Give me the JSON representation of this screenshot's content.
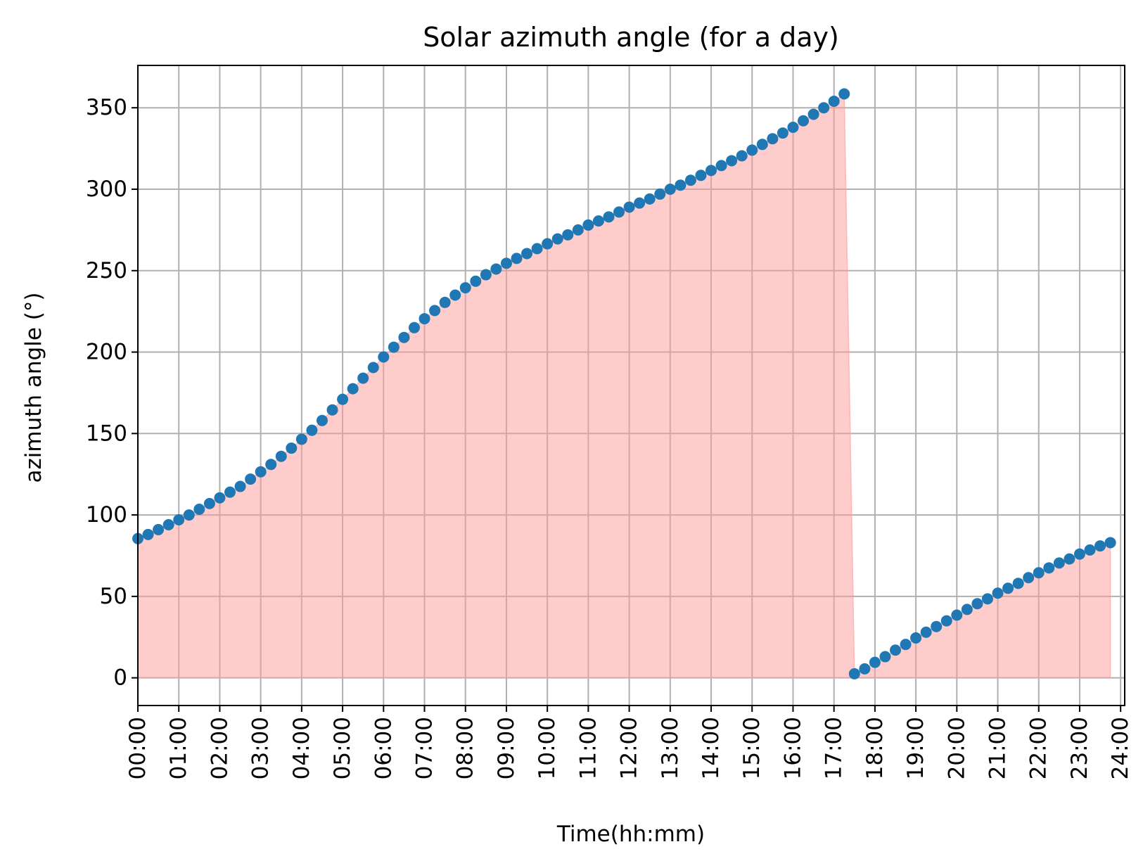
{
  "chart_data": {
    "type": "scatter",
    "title": "Solar azimuth angle (for a day)",
    "xlabel": "Time(hh:mm)",
    "ylabel": "azimuth angle (°)",
    "x_tick_labels": [
      "00:00",
      "01:00",
      "02:00",
      "03:00",
      "04:00",
      "05:00",
      "06:00",
      "07:00",
      "08:00",
      "09:00",
      "10:00",
      "11:00",
      "12:00",
      "13:00",
      "14:00",
      "15:00",
      "16:00",
      "17:00",
      "18:00",
      "19:00",
      "20:00",
      "21:00",
      "22:00",
      "23:00",
      "24:00"
    ],
    "y_ticks": [
      0,
      50,
      100,
      150,
      200,
      250,
      300,
      350
    ],
    "x_range_hours": [
      0,
      24.1
    ],
    "ylim": [
      -17,
      376
    ],
    "grid": true,
    "point_color": "#1f77b4",
    "fill_color": "#ff9999",
    "fill_opacity": 0.5,
    "fill_baseline": 0,
    "series": [
      {
        "x_hours": [
          0,
          0.25,
          0.5,
          0.75,
          1,
          1.25,
          1.5,
          1.75,
          2,
          2.25,
          2.5,
          2.75,
          3,
          3.25,
          3.5,
          3.75,
          4,
          4.25,
          4.5,
          4.75,
          5,
          5.25,
          5.5,
          5.75,
          6,
          6.25,
          6.5,
          6.75,
          7,
          7.25,
          7.5,
          7.75,
          8,
          8.25,
          8.5,
          8.75,
          9,
          9.25,
          9.5,
          9.75,
          10,
          10.25,
          10.5,
          10.75,
          11,
          11.25,
          11.5,
          11.75,
          12,
          12.25,
          12.5,
          12.75,
          13,
          13.25,
          13.5,
          13.75,
          14,
          14.25,
          14.5,
          14.75,
          15,
          15.25,
          15.5,
          15.75,
          16,
          16.25,
          16.5,
          16.75,
          17,
          17.25,
          17.5,
          17.75,
          18,
          18.25,
          18.5,
          18.75,
          19,
          19.25,
          19.5,
          19.75,
          20,
          20.25,
          20.5,
          20.75,
          21,
          21.25,
          21.5,
          21.75,
          22,
          22.25,
          22.5,
          22.75,
          23,
          23.25,
          23.5,
          23.75
        ],
        "y": [
          85.5,
          88.0,
          91.0,
          94.0,
          97.0,
          100.0,
          103.5,
          107.0,
          110.5,
          114.0,
          117.5,
          122.0,
          126.5,
          131.0,
          136.0,
          141.0,
          146.5,
          152.0,
          158.0,
          164.5,
          171.0,
          177.5,
          184.0,
          190.5,
          197.0,
          203.0,
          209.0,
          215.0,
          220.5,
          225.5,
          230.5,
          235.0,
          239.5,
          243.5,
          247.5,
          251.0,
          254.5,
          257.5,
          260.5,
          263.5,
          266.5,
          269.5,
          272.0,
          275.0,
          278.0,
          280.5,
          283.0,
          286.0,
          289.0,
          291.5,
          294.0,
          297.0,
          300.0,
          302.5,
          305.5,
          308.5,
          311.5,
          314.5,
          317.5,
          320.5,
          324.0,
          327.5,
          331.0,
          334.5,
          338.0,
          342.0,
          346.0,
          350.0,
          354.0,
          358.5,
          2.5,
          5.5,
          9.5,
          13.0,
          17.0,
          20.5,
          24.5,
          28.0,
          31.5,
          35.0,
          38.5,
          42.0,
          45.5,
          48.5,
          52.0,
          55.0,
          58.0,
          61.5,
          64.5,
          67.5,
          70.5,
          73.0,
          76.0,
          78.5,
          81.0,
          83.0
        ]
      }
    ]
  }
}
